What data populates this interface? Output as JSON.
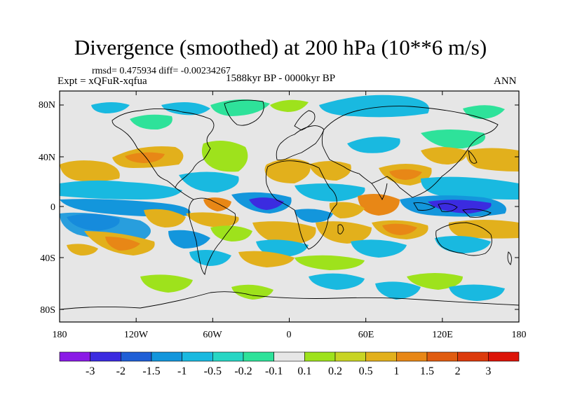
{
  "title": "Divergence (smoothed) at 200 hPa (10**6 m/s)",
  "stats_line": "rmsd= 0.475934  diff= -0.00234267",
  "experiment": "Expt = xQFuR-xqfua",
  "period": "1588kyr BP - 0000kyr BP",
  "season": "ANN",
  "axes": {
    "lat_labels": [
      "80N",
      "40N",
      "0",
      "40S",
      "80S"
    ],
    "lon_labels": [
      "180",
      "120W",
      "60W",
      "0",
      "60E",
      "120E",
      "180"
    ]
  },
  "colorbar": {
    "labels": [
      "-3",
      "-2",
      "-1.5",
      "-1",
      "-0.5",
      "-0.2",
      "-0.1",
      "0.1",
      "0.2",
      "0.5",
      "1",
      "1.5",
      "2",
      "3"
    ],
    "colors": [
      "#8a1ae6",
      "#3b2be0",
      "#1f5fd6",
      "#1396dc",
      "#19b9e0",
      "#27d6c4",
      "#2ee29a",
      "#e6e6e6",
      "#9ee21c",
      "#c8d424",
      "#e2b01c",
      "#e88716",
      "#e05c10",
      "#dc3a0c",
      "#dc1408"
    ]
  },
  "anomaly_colors": {
    "neg_strong": "#3b2be0",
    "neg_mid": "#1396dc",
    "neg_weak": "#19b9e0",
    "neg_faint": "#2ee29a",
    "pos_weak": "#9ee21c",
    "pos_mid": "#e2b01c",
    "pos_strong": "#e88716",
    "background": "#e6e6e6",
    "coast": "#000000"
  }
}
